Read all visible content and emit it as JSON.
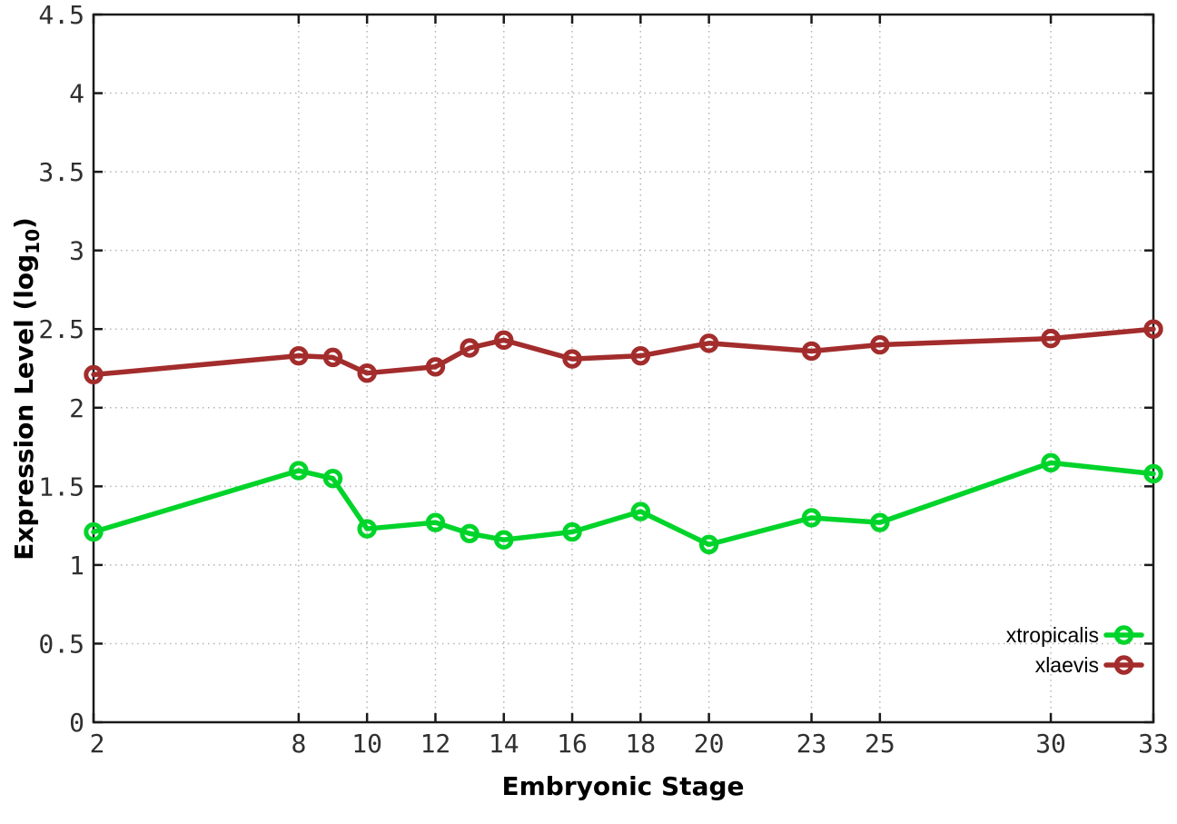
{
  "chart_data": {
    "type": "line",
    "title": "",
    "xlabel": "Embryonic Stage",
    "ylabel": "Expression Level (log10)",
    "ylabel_parts": {
      "main": "Expression Level (log",
      "sub": "10",
      "close": ")"
    },
    "x": [
      2,
      8,
      9,
      10,
      12,
      13,
      14,
      16,
      18,
      20,
      23,
      25,
      30,
      33
    ],
    "series": [
      {
        "name": "xtropicalis",
        "color": "#00d42a",
        "values": [
          1.21,
          1.6,
          1.55,
          1.23,
          1.27,
          1.2,
          1.16,
          1.21,
          1.34,
          1.13,
          1.3,
          1.27,
          1.65,
          1.58
        ]
      },
      {
        "name": "xlaevis",
        "color": "#a32c2c",
        "values": [
          2.21,
          2.33,
          2.32,
          2.22,
          2.26,
          2.38,
          2.43,
          2.31,
          2.33,
          2.41,
          2.36,
          2.4,
          2.44,
          2.5
        ]
      }
    ],
    "x_ticks": [
      2,
      8,
      10,
      12,
      14,
      16,
      18,
      20,
      23,
      25,
      30,
      33
    ],
    "y_ticks": [
      0,
      0.5,
      1,
      1.5,
      2,
      2.5,
      3,
      3.5,
      4,
      4.5
    ],
    "xlim": [
      2,
      33
    ],
    "ylim": [
      0,
      4.5
    ],
    "grid": true,
    "legend_position": "bottom-right",
    "marker": "open-circle",
    "colors": {
      "background": "#ffffff",
      "border": "#1a1a1a",
      "grid": "#b4b4b4",
      "tick_text": "#303030"
    }
  }
}
